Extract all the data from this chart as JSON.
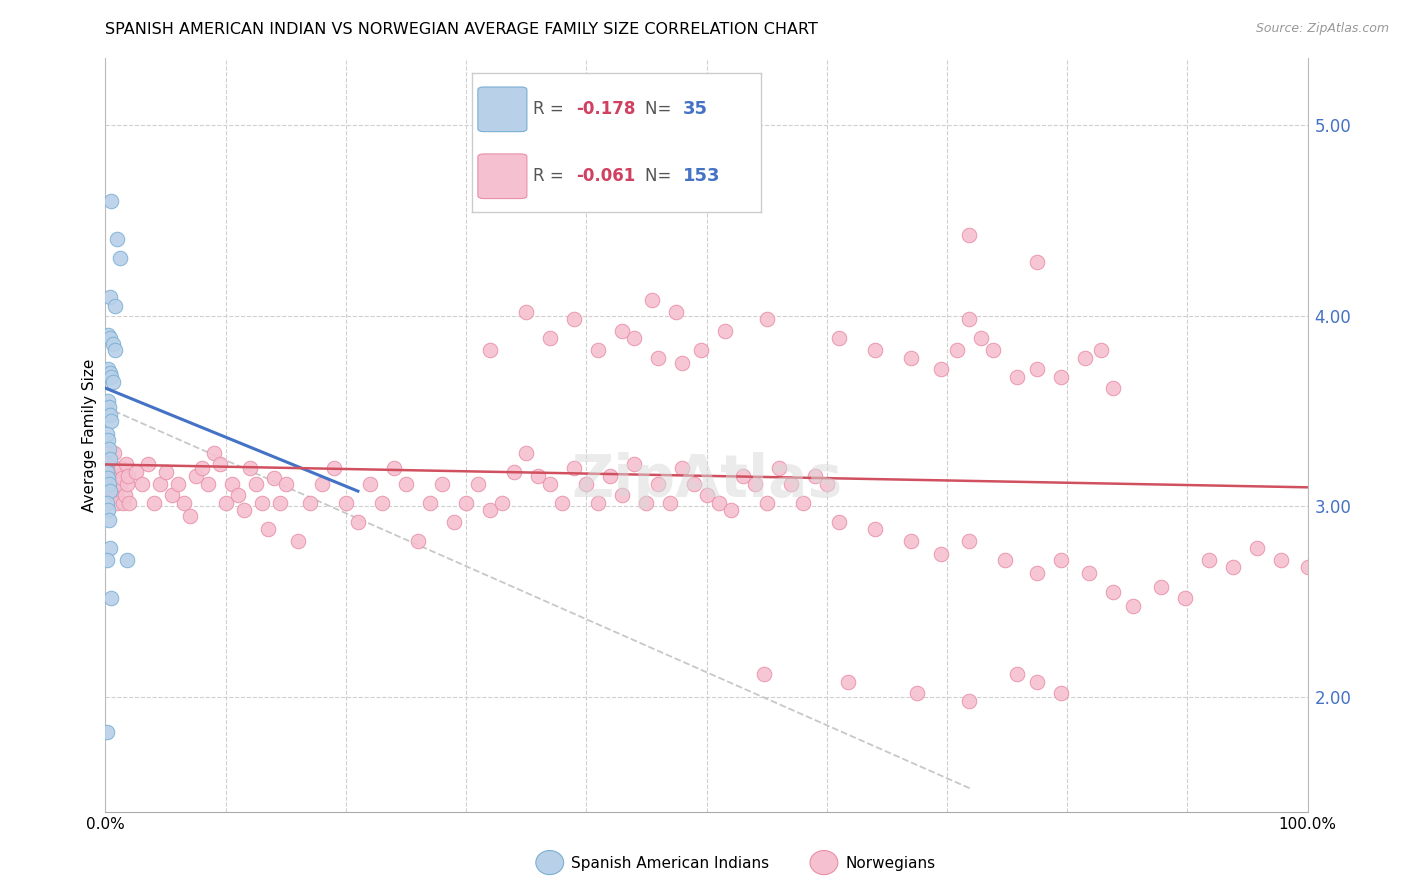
{
  "title": "SPANISH AMERICAN INDIAN VS NORWEGIAN AVERAGE FAMILY SIZE CORRELATION CHART",
  "source": "Source: ZipAtlas.com",
  "ylabel": "Average Family Size",
  "right_yticks": [
    2.0,
    3.0,
    4.0,
    5.0
  ],
  "legend_r_values": [
    "-0.178",
    "-0.061"
  ],
  "legend_n_values": [
    "35",
    "153"
  ],
  "blue_scatter": [
    [
      0.005,
      4.6
    ],
    [
      0.01,
      4.4
    ],
    [
      0.012,
      4.3
    ],
    [
      0.004,
      4.1
    ],
    [
      0.008,
      4.05
    ],
    [
      0.002,
      3.9
    ],
    [
      0.004,
      3.88
    ],
    [
      0.006,
      3.85
    ],
    [
      0.008,
      3.82
    ],
    [
      0.002,
      3.72
    ],
    [
      0.004,
      3.7
    ],
    [
      0.005,
      3.68
    ],
    [
      0.006,
      3.65
    ],
    [
      0.002,
      3.55
    ],
    [
      0.003,
      3.52
    ],
    [
      0.004,
      3.48
    ],
    [
      0.005,
      3.45
    ],
    [
      0.001,
      3.38
    ],
    [
      0.002,
      3.35
    ],
    [
      0.003,
      3.3
    ],
    [
      0.004,
      3.25
    ],
    [
      0.001,
      3.18
    ],
    [
      0.002,
      3.15
    ],
    [
      0.003,
      3.12
    ],
    [
      0.004,
      3.08
    ],
    [
      0.001,
      3.02
    ],
    [
      0.002,
      2.98
    ],
    [
      0.003,
      2.93
    ],
    [
      0.004,
      2.78
    ],
    [
      0.001,
      2.72
    ],
    [
      0.005,
      2.52
    ],
    [
      0.018,
      2.72
    ],
    [
      0.001,
      1.82
    ]
  ],
  "pink_scatter": [
    [
      0.002,
      3.22
    ],
    [
      0.003,
      3.18
    ],
    [
      0.004,
      3.15
    ],
    [
      0.005,
      3.12
    ],
    [
      0.006,
      3.08
    ],
    [
      0.007,
      3.28
    ],
    [
      0.008,
      3.1
    ],
    [
      0.009,
      3.06
    ],
    [
      0.01,
      3.02
    ],
    [
      0.011,
      3.16
    ],
    [
      0.012,
      3.12
    ],
    [
      0.013,
      3.2
    ],
    [
      0.014,
      3.15
    ],
    [
      0.015,
      3.02
    ],
    [
      0.016,
      3.06
    ],
    [
      0.017,
      3.22
    ],
    [
      0.018,
      3.12
    ],
    [
      0.019,
      3.16
    ],
    [
      0.02,
      3.02
    ],
    [
      0.025,
      3.18
    ],
    [
      0.03,
      3.12
    ],
    [
      0.035,
      3.22
    ],
    [
      0.04,
      3.02
    ],
    [
      0.045,
      3.12
    ],
    [
      0.05,
      3.18
    ],
    [
      0.055,
      3.06
    ],
    [
      0.06,
      3.12
    ],
    [
      0.065,
      3.02
    ],
    [
      0.07,
      2.95
    ],
    [
      0.075,
      3.16
    ],
    [
      0.08,
      3.2
    ],
    [
      0.085,
      3.12
    ],
    [
      0.09,
      3.28
    ],
    [
      0.095,
      3.22
    ],
    [
      0.1,
      3.02
    ],
    [
      0.105,
      3.12
    ],
    [
      0.11,
      3.06
    ],
    [
      0.115,
      2.98
    ],
    [
      0.12,
      3.2
    ],
    [
      0.125,
      3.12
    ],
    [
      0.13,
      3.02
    ],
    [
      0.135,
      2.88
    ],
    [
      0.14,
      3.15
    ],
    [
      0.145,
      3.02
    ],
    [
      0.15,
      3.12
    ],
    [
      0.16,
      2.82
    ],
    [
      0.17,
      3.02
    ],
    [
      0.18,
      3.12
    ],
    [
      0.19,
      3.2
    ],
    [
      0.2,
      3.02
    ],
    [
      0.21,
      2.92
    ],
    [
      0.22,
      3.12
    ],
    [
      0.23,
      3.02
    ],
    [
      0.24,
      3.2
    ],
    [
      0.25,
      3.12
    ],
    [
      0.26,
      2.82
    ],
    [
      0.27,
      3.02
    ],
    [
      0.28,
      3.12
    ],
    [
      0.29,
      2.92
    ],
    [
      0.3,
      3.02
    ],
    [
      0.31,
      3.12
    ],
    [
      0.32,
      2.98
    ],
    [
      0.33,
      3.02
    ],
    [
      0.34,
      3.18
    ],
    [
      0.35,
      3.28
    ],
    [
      0.36,
      3.16
    ],
    [
      0.37,
      3.12
    ],
    [
      0.38,
      3.02
    ],
    [
      0.39,
      3.2
    ],
    [
      0.4,
      3.12
    ],
    [
      0.41,
      3.02
    ],
    [
      0.42,
      3.16
    ],
    [
      0.43,
      3.06
    ],
    [
      0.44,
      3.22
    ],
    [
      0.45,
      3.02
    ],
    [
      0.46,
      3.12
    ],
    [
      0.47,
      3.02
    ],
    [
      0.48,
      3.2
    ],
    [
      0.49,
      3.12
    ],
    [
      0.5,
      3.06
    ],
    [
      0.51,
      3.02
    ],
    [
      0.52,
      2.98
    ],
    [
      0.53,
      3.16
    ],
    [
      0.54,
      3.12
    ],
    [
      0.55,
      3.02
    ],
    [
      0.56,
      3.2
    ],
    [
      0.57,
      3.12
    ],
    [
      0.58,
      3.02
    ],
    [
      0.59,
      3.16
    ],
    [
      0.6,
      3.12
    ],
    [
      0.32,
      3.82
    ],
    [
      0.37,
      3.88
    ],
    [
      0.41,
      3.82
    ],
    [
      0.44,
      3.88
    ],
    [
      0.46,
      3.78
    ],
    [
      0.48,
      3.75
    ],
    [
      0.495,
      3.82
    ],
    [
      0.35,
      4.02
    ],
    [
      0.39,
      3.98
    ],
    [
      0.43,
      3.92
    ],
    [
      0.455,
      4.08
    ],
    [
      0.475,
      4.02
    ],
    [
      0.515,
      3.92
    ],
    [
      0.55,
      3.98
    ],
    [
      0.61,
      3.88
    ],
    [
      0.64,
      3.82
    ],
    [
      0.67,
      3.78
    ],
    [
      0.695,
      3.72
    ],
    [
      0.708,
      3.82
    ],
    [
      0.718,
      3.98
    ],
    [
      0.728,
      3.88
    ],
    [
      0.738,
      3.82
    ],
    [
      0.758,
      3.68
    ],
    [
      0.775,
      3.72
    ],
    [
      0.795,
      3.68
    ],
    [
      0.815,
      3.78
    ],
    [
      0.828,
      3.82
    ],
    [
      0.838,
      3.62
    ],
    [
      0.718,
      4.42
    ],
    [
      0.775,
      4.28
    ],
    [
      0.61,
      2.92
    ],
    [
      0.64,
      2.88
    ],
    [
      0.67,
      2.82
    ],
    [
      0.695,
      2.75
    ],
    [
      0.718,
      2.82
    ],
    [
      0.748,
      2.72
    ],
    [
      0.775,
      2.65
    ],
    [
      0.795,
      2.72
    ],
    [
      0.818,
      2.65
    ],
    [
      0.838,
      2.55
    ],
    [
      0.855,
      2.48
    ],
    [
      0.878,
      2.58
    ],
    [
      0.898,
      2.52
    ],
    [
      0.548,
      2.12
    ],
    [
      0.618,
      2.08
    ],
    [
      0.675,
      2.02
    ],
    [
      0.718,
      1.98
    ],
    [
      0.758,
      2.12
    ],
    [
      0.775,
      2.08
    ],
    [
      0.795,
      2.02
    ],
    [
      0.918,
      2.72
    ],
    [
      0.938,
      2.68
    ],
    [
      0.958,
      2.78
    ],
    [
      0.978,
      2.72
    ],
    [
      1.0,
      2.68
    ]
  ],
  "blue_line": [
    [
      0.0,
      3.62
    ],
    [
      0.21,
      3.08
    ]
  ],
  "pink_line": [
    [
      0.0,
      3.22
    ],
    [
      1.0,
      3.1
    ]
  ],
  "dashed_line": [
    [
      0.0,
      3.52
    ],
    [
      0.72,
      1.52
    ]
  ],
  "xlim": [
    0.0,
    1.0
  ],
  "ylim": [
    1.4,
    5.35
  ],
  "plot_bg": "#ffffff",
  "grid_color": "#d0d0d0",
  "blue_dot_color": "#b8d0e8",
  "blue_dot_edge": "#7aafd4",
  "pink_dot_color": "#f5c0d0",
  "pink_dot_edge": "#e890a8",
  "blue_line_color": "#4472c4",
  "pink_line_color": "#d05060",
  "dashed_line_color": "#c8c8c8",
  "right_axis_color": "#4472c4",
  "title_fontsize": 11.5,
  "axis_label_fontsize": 11,
  "tick_fontsize": 11
}
